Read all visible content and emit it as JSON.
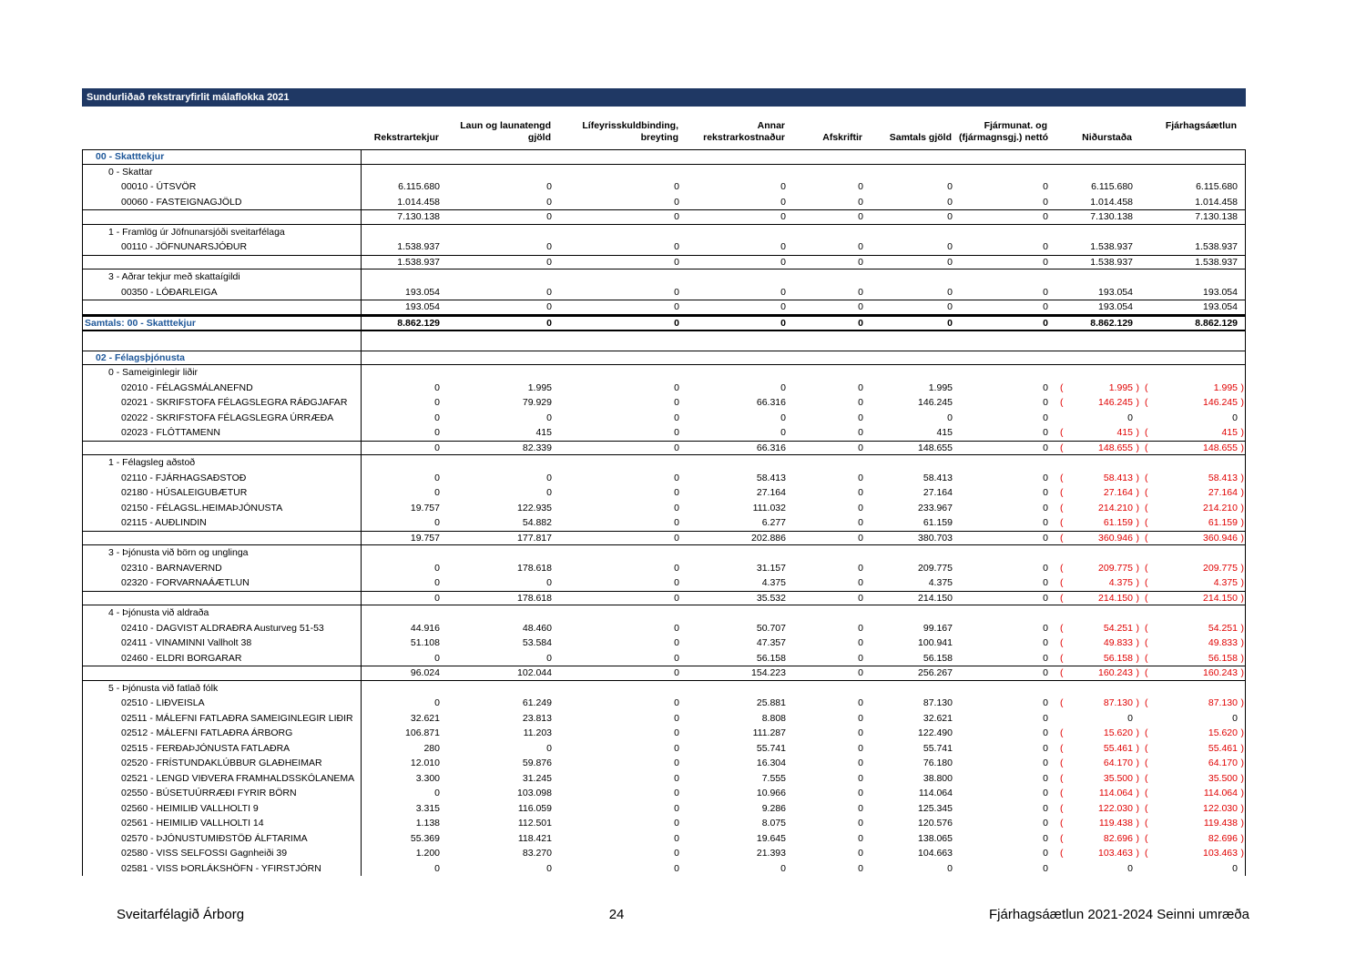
{
  "title_bar": {
    "text": "Sundurliðað rekstraryfirlit málaflokka 2021"
  },
  "colors": {
    "title_bar_bg": "#1F3864",
    "section_text": "#1E5799",
    "negative": "#E00000"
  },
  "columns": [
    {
      "top": "",
      "bottom": "Rekstrartekjur"
    },
    {
      "top": "Laun og launatengd",
      "bottom": "gjöld"
    },
    {
      "top": "Lífeyrisskuldbinding,",
      "bottom": "breyting"
    },
    {
      "top": "Annar",
      "bottom": "rekstrarkostnaður"
    },
    {
      "top": "",
      "bottom": "Afskriftir"
    },
    {
      "top": "",
      "bottom": "Samtals gjöld"
    },
    {
      "top": "Fjármunat. og",
      "bottom": "(fjármagnsgj.) nettó"
    },
    {
      "top": "",
      "bottom": "Niðurstaða"
    },
    {
      "top": "Fjárhagsáætlun",
      "bottom": ""
    }
  ],
  "rows": [
    {
      "type": "section",
      "label": "00 - Skatttekjur"
    },
    {
      "type": "group",
      "label": "0 - Skattar"
    },
    {
      "type": "item",
      "label": "00010 - ÚTSVÖR",
      "cells": [
        "6.115.680",
        "0",
        "0",
        "0",
        "0",
        "0",
        "0",
        "6.115.680",
        "6.115.680"
      ]
    },
    {
      "type": "item",
      "label": "00060 - FASTEIGNAGJÖLD",
      "cells": [
        "1.014.458",
        "0",
        "0",
        "0",
        "0",
        "0",
        "0",
        "1.014.458",
        "1.014.458"
      ]
    },
    {
      "type": "subtotal",
      "label": "",
      "cells": [
        "7.130.138",
        "0",
        "0",
        "0",
        "0",
        "0",
        "0",
        "7.130.138",
        "7.130.138"
      ]
    },
    {
      "type": "group",
      "label": "1 - Framlög úr Jöfnunarsjóði sveitarfélaga"
    },
    {
      "type": "item",
      "label": "00110 - JÖFNUNARSJÓÐUR",
      "cells": [
        "1.538.937",
        "0",
        "0",
        "0",
        "0",
        "0",
        "0",
        "1.538.937",
        "1.538.937"
      ]
    },
    {
      "type": "subtotal",
      "label": "",
      "cells": [
        "1.538.937",
        "0",
        "0",
        "0",
        "0",
        "0",
        "0",
        "1.538.937",
        "1.538.937"
      ]
    },
    {
      "type": "group",
      "label": "3 - Aðrar tekjur með skattaígildi"
    },
    {
      "type": "item",
      "label": "00350 - LÓÐARLEIGA",
      "cells": [
        "193.054",
        "0",
        "0",
        "0",
        "0",
        "0",
        "0",
        "193.054",
        "193.054"
      ]
    },
    {
      "type": "subtotal",
      "label": "",
      "cells": [
        "193.054",
        "0",
        "0",
        "0",
        "0",
        "0",
        "0",
        "193.054",
        "193.054"
      ]
    },
    {
      "type": "grand",
      "label": "Samtals: 00 - Skatttekjur",
      "cells": [
        "8.862.129",
        "0",
        "0",
        "0",
        "0",
        "0",
        "0",
        "8.862.129",
        "8.862.129"
      ]
    },
    {
      "type": "spacer",
      "label": ""
    },
    {
      "type": "section",
      "label": "02 - Félagsþjónusta"
    },
    {
      "type": "group",
      "label": "0 - Sameiginlegir liðir"
    },
    {
      "type": "item",
      "label": "02010 - FÉLAGSMÁLANEFND",
      "cells": [
        "0",
        "1.995",
        "0",
        "0",
        "0",
        "1.995",
        "0",
        "(1.995)",
        "(1.995)"
      ]
    },
    {
      "type": "item",
      "label": "02021 - SKRIFSTOFA  FÉLAGSLEGRA RÁÐGJAFAR",
      "cells": [
        "0",
        "79.929",
        "0",
        "66.316",
        "0",
        "146.245",
        "0",
        "(146.245)",
        "(146.245)"
      ]
    },
    {
      "type": "item",
      "label": "02022 - SKRIFSTOFA  FÉLAGSLEGRA ÚRRÆÐA",
      "cells": [
        "0",
        "0",
        "0",
        "0",
        "0",
        "0",
        "0",
        "0",
        "0"
      ]
    },
    {
      "type": "item",
      "label": "02023 - FLÓTTAMENN",
      "cells": [
        "0",
        "415",
        "0",
        "0",
        "0",
        "415",
        "0",
        "(415)",
        "(415)"
      ]
    },
    {
      "type": "subtotal",
      "label": "",
      "cells": [
        "0",
        "82.339",
        "0",
        "66.316",
        "0",
        "148.655",
        "0",
        "(148.655)",
        "(148.655)"
      ]
    },
    {
      "type": "group",
      "label": "1 - Félagsleg aðstoð"
    },
    {
      "type": "item",
      "label": "02110 - FJÁRHAGSAÐSTOÐ",
      "cells": [
        "0",
        "0",
        "0",
        "58.413",
        "0",
        "58.413",
        "0",
        "(58.413)",
        "(58.413)"
      ]
    },
    {
      "type": "item",
      "label": "02180 - HÚSALEIGUBÆTUR",
      "cells": [
        "0",
        "0",
        "0",
        "27.164",
        "0",
        "27.164",
        "0",
        "(27.164)",
        "(27.164)"
      ]
    },
    {
      "type": "item",
      "label": "02150 - FÉLAGSL.HEIMAÞJÓNUSTA",
      "cells": [
        "19.757",
        "122.935",
        "0",
        "111.032",
        "0",
        "233.967",
        "0",
        "(214.210)",
        "(214.210)"
      ]
    },
    {
      "type": "item",
      "label": "02115 - AUÐLINDIN",
      "cells": [
        "0",
        "54.882",
        "0",
        "6.277",
        "0",
        "61.159",
        "0",
        "(61.159)",
        "(61.159)"
      ]
    },
    {
      "type": "subtotal",
      "label": "",
      "cells": [
        "19.757",
        "177.817",
        "0",
        "202.886",
        "0",
        "380.703",
        "0",
        "(360.946)",
        "(360.946)"
      ]
    },
    {
      "type": "group",
      "label": "3 - Þjónusta við börn og unglinga"
    },
    {
      "type": "item",
      "label": "02310 - BARNAVERND",
      "cells": [
        "0",
        "178.618",
        "0",
        "31.157",
        "0",
        "209.775",
        "0",
        "(209.775)",
        "(209.775)"
      ]
    },
    {
      "type": "item",
      "label": "02320 - FORVARNAÁÆTLUN",
      "cells": [
        "0",
        "0",
        "0",
        "4.375",
        "0",
        "4.375",
        "0",
        "(4.375)",
        "(4.375)"
      ]
    },
    {
      "type": "subtotal",
      "label": "",
      "cells": [
        "0",
        "178.618",
        "0",
        "35.532",
        "0",
        "214.150",
        "0",
        "(214.150)",
        "(214.150)"
      ]
    },
    {
      "type": "group",
      "label": "4 - Þjónusta við aldraða"
    },
    {
      "type": "item",
      "label": "02410 - DAGVIST ALDRAÐRA Austurveg 51-53",
      "cells": [
        "44.916",
        "48.460",
        "0",
        "50.707",
        "0",
        "99.167",
        "0",
        "(54.251)",
        "(54.251)"
      ]
    },
    {
      "type": "item",
      "label": "02411 - VINAMINNI Vallholt 38",
      "cells": [
        "51.108",
        "53.584",
        "0",
        "47.357",
        "0",
        "100.941",
        "0",
        "(49.833)",
        "(49.833)"
      ]
    },
    {
      "type": "item",
      "label": "02460 - ELDRI BORGARAR",
      "cells": [
        "0",
        "0",
        "0",
        "56.158",
        "0",
        "56.158",
        "0",
        "(56.158)",
        "(56.158)"
      ]
    },
    {
      "type": "subtotal",
      "label": "",
      "cells": [
        "96.024",
        "102.044",
        "0",
        "154.223",
        "0",
        "256.267",
        "0",
        "(160.243)",
        "(160.243)"
      ]
    },
    {
      "type": "group",
      "label": "5 - Þjónusta við fatlað fólk"
    },
    {
      "type": "item",
      "label": "02510 - LIÐVEISLA",
      "cells": [
        "0",
        "61.249",
        "0",
        "25.881",
        "0",
        "87.130",
        "0",
        "(87.130)",
        "(87.130)"
      ]
    },
    {
      "type": "item",
      "label": "02511 - MÁLEFNI FATLAÐRA SAMEIGINLEGIR LIÐIR",
      "cells": [
        "32.621",
        "23.813",
        "0",
        "8.808",
        "0",
        "32.621",
        "0",
        "0",
        "0"
      ]
    },
    {
      "type": "item",
      "label": "02512 - MÁLEFNI FATLAÐRA ÁRBORG",
      "cells": [
        "106.871",
        "11.203",
        "0",
        "111.287",
        "0",
        "122.490",
        "0",
        "(15.620)",
        "(15.620)"
      ]
    },
    {
      "type": "item",
      "label": "02515 - FERÐAÞJÓNUSTA FATLAÐRA",
      "cells": [
        "280",
        "0",
        "0",
        "55.741",
        "0",
        "55.741",
        "0",
        "(55.461)",
        "(55.461)"
      ]
    },
    {
      "type": "item",
      "label": "02520 - FRÍSTUNDAKLÚBBUR GLAÐHEIMAR",
      "cells": [
        "12.010",
        "59.876",
        "0",
        "16.304",
        "0",
        "76.180",
        "0",
        "(64.170)",
        "(64.170)"
      ]
    },
    {
      "type": "item",
      "label": "02521 - LENGD VIÐVERA FRAMHALDSSKÓLANEMA",
      "cells": [
        "3.300",
        "31.245",
        "0",
        "7.555",
        "0",
        "38.800",
        "0",
        "(35.500)",
        "(35.500)"
      ]
    },
    {
      "type": "item",
      "label": "02550 - BÚSETUÚRRÆÐI FYRIR BÖRN",
      "cells": [
        "0",
        "103.098",
        "0",
        "10.966",
        "0",
        "114.064",
        "0",
        "(114.064)",
        "(114.064)"
      ]
    },
    {
      "type": "item",
      "label": "02560 - HEIMILIÐ VALLHOLTI 9",
      "cells": [
        "3.315",
        "116.059",
        "0",
        "9.286",
        "0",
        "125.345",
        "0",
        "(122.030)",
        "(122.030)"
      ]
    },
    {
      "type": "item",
      "label": "02561 - HEIMILIÐ VALLHOLTI 14",
      "cells": [
        "1.138",
        "112.501",
        "0",
        "8.075",
        "0",
        "120.576",
        "0",
        "(119.438)",
        "(119.438)"
      ]
    },
    {
      "type": "item",
      "label": "02570 - ÞJÓNUSTUMIÐSTÖÐ ÁLFTARIMA",
      "cells": [
        "55.369",
        "118.421",
        "0",
        "19.645",
        "0",
        "138.065",
        "0",
        "(82.696)",
        "(82.696)"
      ]
    },
    {
      "type": "item",
      "label": "02580 - VISS SELFOSSI Gagnheiði 39",
      "cells": [
        "1.200",
        "83.270",
        "0",
        "21.393",
        "0",
        "104.663",
        "0",
        "(103.463)",
        "(103.463)"
      ]
    },
    {
      "type": "item",
      "label": "02581 - VISS ÞORLÁKSHÖFN - YFIRSTJÓRN",
      "cells": [
        "0",
        "0",
        "0",
        "0",
        "0",
        "0",
        "0",
        "0",
        "0"
      ]
    }
  ],
  "footer": {
    "left": "Sveitarfélagið Árborg",
    "page": "24",
    "right": "Fjárhagsáætlun 2021-2024 Seinni umræða"
  }
}
